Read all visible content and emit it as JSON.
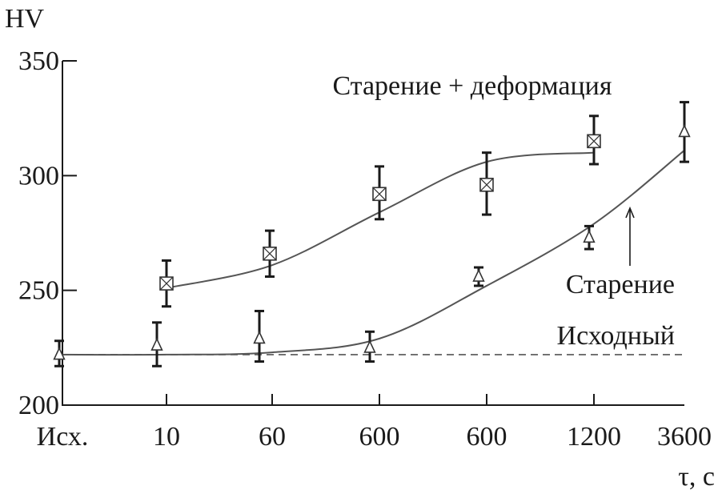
{
  "chart_data": {
    "type": "scatter",
    "ylabel": "HV",
    "xlabel": "τ, с",
    "ylim": [
      200,
      350
    ],
    "yticks": [
      200,
      250,
      300,
      350
    ],
    "categories": [
      "Исх.",
      "10",
      "60",
      "600",
      "600",
      "1200",
      "3600"
    ],
    "grid": false,
    "series": [
      {
        "name": "Старение + деформация",
        "marker": "square-x",
        "points": [
          {
            "x": "10",
            "y": 253,
            "err_low": 243,
            "err_high": 263
          },
          {
            "x": "60",
            "y": 266,
            "err_low": 256,
            "err_high": 276
          },
          {
            "x": "600",
            "y": 292,
            "err_low": 281,
            "err_high": 304
          },
          {
            "x": "600",
            "y": 296,
            "err_low": 283,
            "err_high": 310
          },
          {
            "x": "1200",
            "y": 315,
            "err_low": 305,
            "err_high": 326
          }
        ],
        "fit": [
          {
            "x": "10",
            "y": 251
          },
          {
            "x": "60",
            "y": 261
          },
          {
            "x": "600",
            "y": 284
          },
          {
            "x": "600",
            "y": 306
          },
          {
            "x": "1200",
            "y": 310
          }
        ]
      },
      {
        "name": "Старение",
        "marker": "triangle",
        "points": [
          {
            "x": "Исх.",
            "y": 222,
            "err_low": 217,
            "err_high": 228
          },
          {
            "x": "10",
            "y": 226,
            "err_low": 217,
            "err_high": 236
          },
          {
            "x": "60",
            "y": 229,
            "err_low": 219,
            "err_high": 241
          },
          {
            "x": "600",
            "y": 225,
            "err_low": 219,
            "err_high": 232
          },
          {
            "x": "600",
            "y": 256,
            "err_low": 252,
            "err_high": 260
          },
          {
            "x": "1200",
            "y": 273,
            "err_low": 268,
            "err_high": 278
          },
          {
            "x": "3600",
            "y": 319,
            "err_low": 306,
            "err_high": 332
          }
        ],
        "fit": [
          {
            "x": "Исх.",
            "y": 222
          },
          {
            "x": "10",
            "y": 222
          },
          {
            "x": "60",
            "y": 223
          },
          {
            "x": "600",
            "y": 229
          },
          {
            "x": "600",
            "y": 252
          },
          {
            "x": "1200",
            "y": 279
          },
          {
            "x": "3600",
            "y": 311
          }
        ]
      }
    ],
    "reference_line": {
      "name": "Исходный",
      "y": 222
    },
    "annotations": [
      "Старение + деформация",
      "Старение",
      "Исходный"
    ]
  }
}
